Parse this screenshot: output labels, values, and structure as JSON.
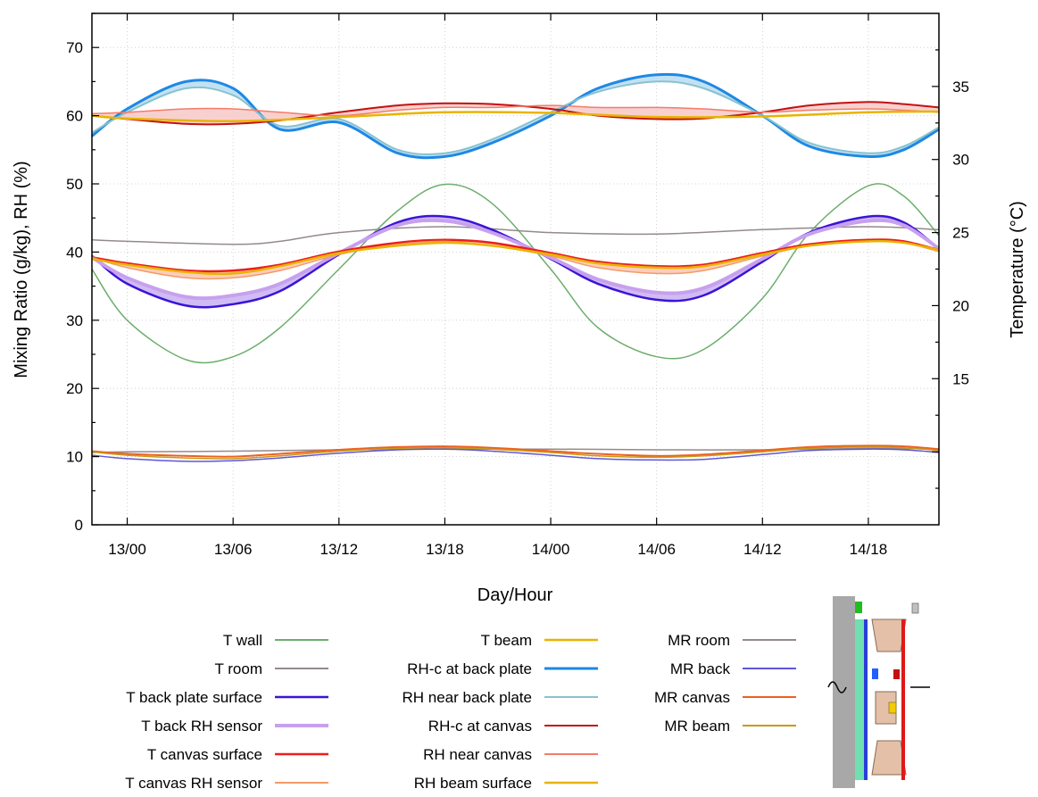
{
  "chart_data": {
    "type": "line",
    "xlabel": "Day/Hour",
    "ylabel_left": "Mixing Ratio (g/kg), RH (%)",
    "ylabel_right": "Temperature (°C)",
    "x_unit": "hours since 13/00",
    "xlim": [
      -3,
      69
    ],
    "ylim_left": [
      0,
      75
    ],
    "ylim_right": [
      5,
      40
    ],
    "x_ticks": [
      {
        "x": 0,
        "label": "13/00"
      },
      {
        "x": 9,
        "label": "13/06"
      },
      {
        "x": 18,
        "label": "13/12"
      },
      {
        "x": 27,
        "label": "13/18"
      },
      {
        "x": 36,
        "label": "14/00"
      },
      {
        "x": 45,
        "label": "14/06"
      },
      {
        "x": 54,
        "label": "14/12"
      },
      {
        "x": 63,
        "label": "14/18"
      }
    ],
    "y_ticks_left": [
      0,
      10,
      20,
      30,
      40,
      50,
      60,
      70
    ],
    "y_ticks_right": [
      15,
      20,
      25,
      30,
      35
    ],
    "grid": true,
    "series": [
      {
        "name": "T wall",
        "axis": "right",
        "color": "#6cae6c",
        "width": 1.5,
        "x": [
          -3,
          0,
          5,
          9,
          13,
          18,
          23,
          27,
          31,
          36,
          40,
          45,
          49,
          54,
          58,
          63,
          66,
          69
        ],
        "y": [
          22.5,
          19,
          16.3,
          16.5,
          18.5,
          22.5,
          26.5,
          28.3,
          27,
          22.5,
          18.5,
          16.5,
          17,
          20.5,
          25,
          28.2,
          27.5,
          24.8
        ]
      },
      {
        "name": "T room",
        "axis": "right",
        "color": "#948a8a",
        "width": 1.5,
        "x": [
          -3,
          0,
          9,
          13,
          18,
          27,
          36,
          45,
          54,
          63,
          69
        ],
        "y": [
          24.5,
          24.4,
          24.2,
          24.4,
          25,
          25.4,
          25,
          24.9,
          25.2,
          25.4,
          25.2
        ]
      },
      {
        "name": "T back plate surface",
        "axis": "right",
        "color": "#3a14d6",
        "width": 2.5,
        "x": [
          -3,
          0,
          5,
          9,
          13,
          18,
          23,
          27,
          31,
          36,
          40,
          45,
          49,
          54,
          58,
          63,
          66,
          69
        ],
        "y": [
          23.4,
          21.5,
          20,
          20.1,
          21,
          23.5,
          25.7,
          26.1,
          25.2,
          23.2,
          21.5,
          20.4,
          20.7,
          23,
          25,
          26.1,
          25.7,
          23.9
        ]
      },
      {
        "name": "T back RH sensor",
        "axis": "right",
        "color": "#c8a0ee",
        "width": 4,
        "x": [
          -3,
          0,
          5,
          9,
          13,
          18,
          23,
          27,
          31,
          36,
          40,
          45,
          49,
          54,
          58,
          63,
          66,
          69
        ],
        "y": [
          23.3,
          21.9,
          20.6,
          20.7,
          21.5,
          23.6,
          25.5,
          25.8,
          25,
          23.3,
          21.8,
          20.9,
          21.2,
          23.2,
          24.9,
          25.8,
          25.5,
          23.9
        ]
      },
      {
        "name": "T canvas surface",
        "axis": "right",
        "color": "#ee1c1c",
        "width": 2.5,
        "x": [
          -3,
          0,
          5,
          9,
          13,
          18,
          23,
          27,
          31,
          36,
          40,
          45,
          49,
          54,
          58,
          63,
          66,
          69
        ],
        "y": [
          23.3,
          22.9,
          22.4,
          22.4,
          22.8,
          23.7,
          24.3,
          24.5,
          24.3,
          23.6,
          23,
          22.7,
          22.8,
          23.6,
          24.2,
          24.5,
          24.4,
          23.8
        ]
      },
      {
        "name": "T canvas RH sensor",
        "axis": "right",
        "color": "#f59a68",
        "width": 1.5,
        "x": [
          -3,
          0,
          5,
          9,
          13,
          18,
          23,
          27,
          31,
          36,
          40,
          45,
          49,
          54,
          58,
          63,
          66,
          69
        ],
        "y": [
          23.3,
          22.6,
          21.9,
          21.9,
          22.4,
          23.5,
          24.2,
          24.4,
          24.1,
          23.4,
          22.6,
          22.2,
          22.4,
          23.4,
          24.1,
          24.4,
          24.3,
          23.7
        ]
      },
      {
        "name": "T beam",
        "axis": "right",
        "color": "#e8b400",
        "width": 2.5,
        "x": [
          -3,
          0,
          5,
          9,
          13,
          18,
          23,
          27,
          31,
          36,
          40,
          45,
          49,
          54,
          58,
          63,
          66,
          69
        ],
        "y": [
          23.2,
          22.8,
          22.3,
          22.2,
          22.7,
          23.6,
          24.1,
          24.3,
          24.1,
          23.5,
          22.9,
          22.6,
          22.7,
          23.5,
          24.1,
          24.4,
          24.3,
          23.8
        ]
      },
      {
        "name": "RH-c at back plate",
        "axis": "left",
        "color": "#1e88e5",
        "width": 3,
        "x": [
          -3,
          0,
          5,
          9,
          13,
          18,
          23,
          27,
          31,
          36,
          40,
          45,
          49,
          54,
          58,
          63,
          66,
          69
        ],
        "y": [
          57,
          61,
          65,
          64,
          58,
          59,
          54.5,
          54,
          56,
          60,
          64,
          66,
          65,
          60,
          55.5,
          54,
          55,
          58
        ]
      },
      {
        "name": "RH near back plate",
        "axis": "left",
        "color": "#88c2ce",
        "width": 2,
        "x": [
          -3,
          0,
          5,
          9,
          13,
          18,
          23,
          27,
          31,
          36,
          40,
          45,
          49,
          54,
          58,
          63,
          66,
          69
        ],
        "y": [
          57.5,
          60.5,
          64,
          63,
          58.5,
          59.5,
          55,
          54.5,
          56.5,
          60.5,
          63.5,
          65,
          64,
          60,
          56,
          54.5,
          55.5,
          58.3
        ]
      },
      {
        "name": "RH-c at canvas",
        "axis": "left",
        "color": "#c41010",
        "width": 2,
        "x": [
          -3,
          0,
          5,
          9,
          13,
          18,
          23,
          27,
          31,
          36,
          40,
          45,
          49,
          54,
          58,
          63,
          66,
          69
        ],
        "y": [
          60,
          59.5,
          58.8,
          58.8,
          59.3,
          60.5,
          61.5,
          61.8,
          61.7,
          61,
          60,
          59.5,
          59.6,
          60.5,
          61.5,
          62,
          61.7,
          61.2
        ]
      },
      {
        "name": "RH near canvas",
        "axis": "left",
        "color": "#f37c68",
        "width": 1.5,
        "x": [
          -3,
          0,
          5,
          9,
          13,
          18,
          23,
          27,
          31,
          36,
          40,
          45,
          49,
          54,
          58,
          63,
          66,
          69
        ],
        "y": [
          60.3,
          60.5,
          61,
          61,
          60.5,
          60,
          60.8,
          61.2,
          61.2,
          61.5,
          61.2,
          61.2,
          61,
          60.5,
          60.8,
          61,
          60.8,
          60.5
        ]
      },
      {
        "name": "RH beam surface",
        "axis": "left",
        "color": "#e8b400",
        "width": 2.5,
        "x": [
          -3,
          0,
          9,
          18,
          27,
          36,
          45,
          54,
          63,
          69
        ],
        "y": [
          60,
          59.6,
          59.2,
          59.8,
          60.5,
          60.4,
          59.8,
          59.9,
          60.5,
          60.6
        ]
      },
      {
        "name": "MR room",
        "axis": "left",
        "color": "#948a8a",
        "width": 1.5,
        "x": [
          -3,
          0,
          9,
          18,
          27,
          36,
          45,
          54,
          63,
          69
        ],
        "y": [
          10.6,
          10.7,
          10.8,
          11,
          11.1,
          11.1,
          11,
          11,
          11.2,
          11.1
        ]
      },
      {
        "name": "MR back",
        "axis": "left",
        "color": "#5f56d8",
        "width": 1.5,
        "x": [
          -3,
          0,
          5,
          9,
          13,
          18,
          23,
          27,
          31,
          36,
          40,
          45,
          49,
          54,
          58,
          63,
          66,
          69
        ],
        "y": [
          10.2,
          9.7,
          9.3,
          9.4,
          9.8,
          10.5,
          11,
          11.1,
          10.8,
          10.2,
          9.7,
          9.5,
          9.6,
          10.3,
          10.9,
          11.1,
          11,
          10.6
        ]
      },
      {
        "name": "MR canvas",
        "axis": "left",
        "color": "#ee6022",
        "width": 2,
        "x": [
          -3,
          0,
          5,
          9,
          13,
          18,
          23,
          27,
          31,
          36,
          40,
          45,
          49,
          54,
          58,
          63,
          66,
          69
        ],
        "y": [
          10.8,
          10.4,
          10.1,
          10,
          10.4,
          11,
          11.4,
          11.5,
          11.3,
          10.8,
          10.4,
          10.1,
          10.3,
          10.9,
          11.4,
          11.6,
          11.5,
          11.1
        ]
      },
      {
        "name": "MR beam",
        "axis": "left",
        "color": "#c89a14",
        "width": 1.5,
        "x": [
          -3,
          0,
          5,
          9,
          13,
          18,
          23,
          27,
          31,
          36,
          40,
          45,
          49,
          54,
          58,
          63,
          66,
          69
        ],
        "y": [
          10.7,
          10.2,
          9.8,
          9.7,
          10.1,
          10.8,
          11.2,
          11.3,
          11.1,
          10.6,
          10.1,
          9.9,
          10.1,
          10.7,
          11.2,
          11.4,
          11.3,
          10.9
        ]
      }
    ],
    "bands": [
      {
        "lower": "T back plate surface",
        "upper": "T back RH sensor",
        "fill": "#c8b0f2"
      },
      {
        "lower": "T canvas RH sensor",
        "upper": "T canvas surface",
        "fill": "#fbc4b2"
      },
      {
        "lower": "RH-c at canvas",
        "upper": "RH near canvas",
        "fill": "#f8c8c8"
      },
      {
        "lower": "RH-c at back plate",
        "upper": "RH near back plate",
        "fill": "#b8dcf2"
      }
    ],
    "legend_placement": "bottom",
    "legend_columns": [
      [
        "T wall",
        "T room",
        "T back plate surface",
        "T back RH sensor",
        "T canvas surface",
        "T canvas RH sensor"
      ],
      [
        "T beam",
        "RH-c at back plate",
        "RH near back plate",
        "RH-c at canvas",
        "RH near canvas",
        "RH beam surface"
      ],
      [
        "MR room",
        "MR back",
        "MR canvas",
        "MR beam"
      ]
    ]
  }
}
